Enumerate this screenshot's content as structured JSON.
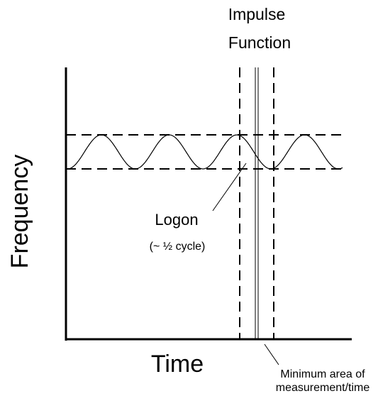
{
  "labels": {
    "impulse_function": [
      "Impulse",
      "Function"
    ],
    "y_axis": "Frequency",
    "x_axis": "Time",
    "logon": "Logon",
    "logon_note": "(~ ½ cycle)",
    "minimum_area": [
      "Minimum area of",
      "measurement/time"
    ]
  }
}
